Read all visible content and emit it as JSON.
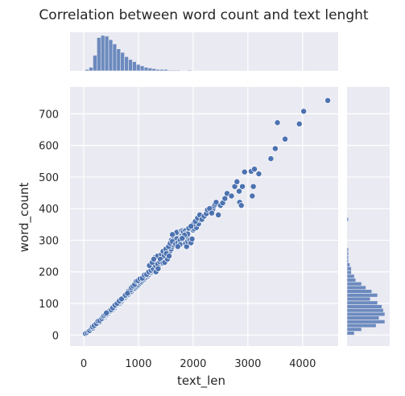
{
  "chart_data": {
    "type": "scatter",
    "title": "Correlation between word count and text lenght",
    "xlabel": "text_len",
    "ylabel": "word_count",
    "xlim": [
      -250,
      4650
    ],
    "ylim": [
      -35,
      785
    ],
    "x_ticks": [
      0,
      1000,
      2000,
      3000,
      4000
    ],
    "y_ticks": [
      0,
      100,
      200,
      300,
      400,
      500,
      600,
      700
    ],
    "grid": true,
    "colors": {
      "point": "#4c72b0",
      "bar": "#4c72b0",
      "bg": "#eaeaf2",
      "grid": "#ffffff"
    },
    "marginal_x_hist": {
      "bin_width": 72,
      "start": 25,
      "counts": [
        2,
        5,
        22,
        47,
        50,
        49,
        44,
        38,
        31,
        26,
        20,
        16,
        13,
        9,
        7,
        5,
        4,
        3,
        2,
        2,
        2,
        1,
        1,
        1,
        0,
        0,
        1
      ]
    },
    "marginal_y_hist": {
      "bin_width": 12,
      "start": 0,
      "counts": [
        5,
        10,
        20,
        26,
        22,
        26,
        25,
        24,
        21,
        16,
        21,
        17,
        13,
        10,
        6,
        5,
        3,
        3,
        2,
        1,
        1,
        1,
        1,
        0,
        0,
        0,
        0,
        0,
        0,
        0,
        1
      ]
    },
    "points": [
      [
        30,
        5
      ],
      [
        60,
        8
      ],
      [
        90,
        12
      ],
      [
        110,
        14
      ],
      [
        140,
        20
      ],
      [
        170,
        22
      ],
      [
        200,
        28
      ],
      [
        220,
        32
      ],
      [
        250,
        36
      ],
      [
        270,
        40
      ],
      [
        300,
        42
      ],
      [
        320,
        46
      ],
      [
        340,
        50
      ],
      [
        360,
        52
      ],
      [
        380,
        55
      ],
      [
        400,
        58
      ],
      [
        420,
        62
      ],
      [
        440,
        66
      ],
      [
        460,
        68
      ],
      [
        480,
        72
      ],
      [
        500,
        75
      ],
      [
        520,
        78
      ],
      [
        540,
        80
      ],
      [
        560,
        84
      ],
      [
        580,
        88
      ],
      [
        600,
        92
      ],
      [
        620,
        95
      ],
      [
        640,
        98
      ],
      [
        660,
        100
      ],
      [
        680,
        104
      ],
      [
        700,
        108
      ],
      [
        720,
        112
      ],
      [
        740,
        115
      ],
      [
        760,
        118
      ],
      [
        780,
        122
      ],
      [
        800,
        125
      ],
      [
        820,
        128
      ],
      [
        840,
        132
      ],
      [
        860,
        135
      ],
      [
        880,
        138
      ],
      [
        900,
        142
      ],
      [
        920,
        146
      ],
      [
        940,
        148
      ],
      [
        960,
        152
      ],
      [
        980,
        155
      ],
      [
        1000,
        158
      ],
      [
        1020,
        162
      ],
      [
        1040,
        165
      ],
      [
        1060,
        168
      ],
      [
        1080,
        172
      ],
      [
        1100,
        175
      ],
      [
        1120,
        178
      ],
      [
        1140,
        182
      ],
      [
        1160,
        185
      ],
      [
        1180,
        188
      ],
      [
        1200,
        192
      ],
      [
        1220,
        196
      ],
      [
        1240,
        198
      ],
      [
        1260,
        202
      ],
      [
        1280,
        205
      ],
      [
        1300,
        208
      ],
      [
        1320,
        212
      ],
      [
        1340,
        215
      ],
      [
        1360,
        218
      ],
      [
        1380,
        222
      ],
      [
        1400,
        226
      ],
      [
        1420,
        230
      ],
      [
        1440,
        234
      ],
      [
        1460,
        238
      ],
      [
        1480,
        242
      ],
      [
        1500,
        246
      ],
      [
        1520,
        250
      ],
      [
        1540,
        255
      ],
      [
        1560,
        260
      ],
      [
        1580,
        266
      ],
      [
        1600,
        272
      ],
      [
        1620,
        280
      ],
      [
        1640,
        285
      ],
      [
        1660,
        292
      ],
      [
        1680,
        298
      ],
      [
        1700,
        302
      ],
      [
        1720,
        308
      ],
      [
        1740,
        312
      ],
      [
        1760,
        316
      ],
      [
        1780,
        320
      ],
      [
        1800,
        318
      ],
      [
        1820,
        310
      ],
      [
        1840,
        300
      ],
      [
        1860,
        290
      ],
      [
        1880,
        280
      ],
      [
        1900,
        296
      ],
      [
        1920,
        306
      ],
      [
        1940,
        300
      ],
      [
        1960,
        292
      ],
      [
        1980,
        304
      ],
      [
        2000,
        332
      ],
      [
        2020,
        336
      ],
      [
        2060,
        340
      ],
      [
        2100,
        352
      ],
      [
        2140,
        364
      ],
      [
        2180,
        372
      ],
      [
        2220,
        380
      ],
      [
        2280,
        388
      ],
      [
        2320,
        392
      ],
      [
        2360,
        398
      ],
      [
        2380,
        408
      ],
      [
        2400,
        414
      ],
      [
        2420,
        420
      ],
      [
        2460,
        380
      ],
      [
        2500,
        410
      ],
      [
        2540,
        418
      ],
      [
        2580,
        432
      ],
      [
        2620,
        448
      ],
      [
        2700,
        440
      ],
      [
        2760,
        470
      ],
      [
        2800,
        485
      ],
      [
        2840,
        455
      ],
      [
        2850,
        420
      ],
      [
        2880,
        410
      ],
      [
        2900,
        470
      ],
      [
        2940,
        516
      ],
      [
        3060,
        518
      ],
      [
        3080,
        440
      ],
      [
        3100,
        470
      ],
      [
        3120,
        525
      ],
      [
        3200,
        510
      ],
      [
        3420,
        558
      ],
      [
        3500,
        590
      ],
      [
        3540,
        672
      ],
      [
        3680,
        620
      ],
      [
        3940,
        668
      ],
      [
        4020,
        708
      ],
      [
        4460,
        742
      ],
      [
        1300,
        245
      ],
      [
        1350,
        250
      ],
      [
        1420,
        255
      ],
      [
        1450,
        265
      ],
      [
        1500,
        272
      ],
      [
        1550,
        280
      ],
      [
        1600,
        300
      ],
      [
        1650,
        310
      ],
      [
        1700,
        305
      ],
      [
        1750,
        296
      ],
      [
        1580,
        290
      ],
      [
        1620,
        296
      ],
      [
        1680,
        288
      ],
      [
        1720,
        292
      ],
      [
        1760,
        300
      ],
      [
        1650,
        320
      ],
      [
        1700,
        325
      ],
      [
        1620,
        318
      ],
      [
        1780,
        330
      ],
      [
        1800,
        330
      ],
      [
        820,
        140
      ],
      [
        850,
        142
      ],
      [
        870,
        150
      ],
      [
        900,
        155
      ],
      [
        930,
        160
      ],
      [
        960,
        170
      ],
      [
        990,
        172
      ],
      [
        1030,
        178
      ],
      [
        1070,
        180
      ],
      [
        1110,
        190
      ],
      [
        1150,
        192
      ],
      [
        1190,
        200
      ],
      [
        1230,
        205
      ],
      [
        1270,
        210
      ],
      [
        1310,
        220
      ],
      [
        1350,
        225
      ],
      [
        1390,
        232
      ],
      [
        1430,
        240
      ],
      [
        1470,
        250
      ],
      [
        1510,
        258
      ],
      [
        520,
        82
      ],
      [
        560,
        90
      ],
      [
        600,
        98
      ],
      [
        640,
        104
      ],
      [
        680,
        112
      ],
      [
        720,
        118
      ],
      [
        760,
        126
      ],
      [
        800,
        132
      ],
      [
        450,
        70
      ],
      [
        480,
        80
      ],
      [
        380,
        60
      ],
      [
        410,
        64
      ],
      [
        440,
        72
      ],
      [
        470,
        76
      ],
      [
        500,
        80
      ],
      [
        530,
        86
      ],
      [
        570,
        94
      ],
      [
        610,
        100
      ],
      [
        650,
        108
      ],
      [
        690,
        114
      ],
      [
        160,
        26
      ],
      [
        190,
        30
      ],
      [
        230,
        36
      ],
      [
        260,
        44
      ],
      [
        290,
        46
      ],
      [
        330,
        52
      ],
      [
        350,
        58
      ],
      [
        370,
        62
      ],
      [
        395,
        66
      ],
      [
        415,
        70
      ],
      [
        1200,
        220
      ],
      [
        1250,
        230
      ],
      [
        1280,
        240
      ],
      [
        1320,
        200
      ],
      [
        1360,
        210
      ],
      [
        1400,
        240
      ],
      [
        1450,
        228
      ],
      [
        1480,
        230
      ],
      [
        1530,
        240
      ],
      [
        1560,
        250
      ],
      [
        2000,
        350
      ],
      [
        2040,
        360
      ],
      [
        2080,
        370
      ],
      [
        2120,
        380
      ],
      [
        2160,
        366
      ],
      [
        2200,
        376
      ],
      [
        2240,
        384
      ],
      [
        2260,
        396
      ],
      [
        2300,
        400
      ],
      [
        2340,
        386
      ],
      [
        1820,
        326
      ],
      [
        1860,
        330
      ],
      [
        1880,
        322
      ],
      [
        1920,
        338
      ],
      [
        1960,
        344
      ],
      [
        1900,
        320
      ],
      [
        1840,
        316
      ],
      [
        1800,
        306
      ],
      [
        1760,
        286
      ],
      [
        1720,
        280
      ]
    ]
  }
}
